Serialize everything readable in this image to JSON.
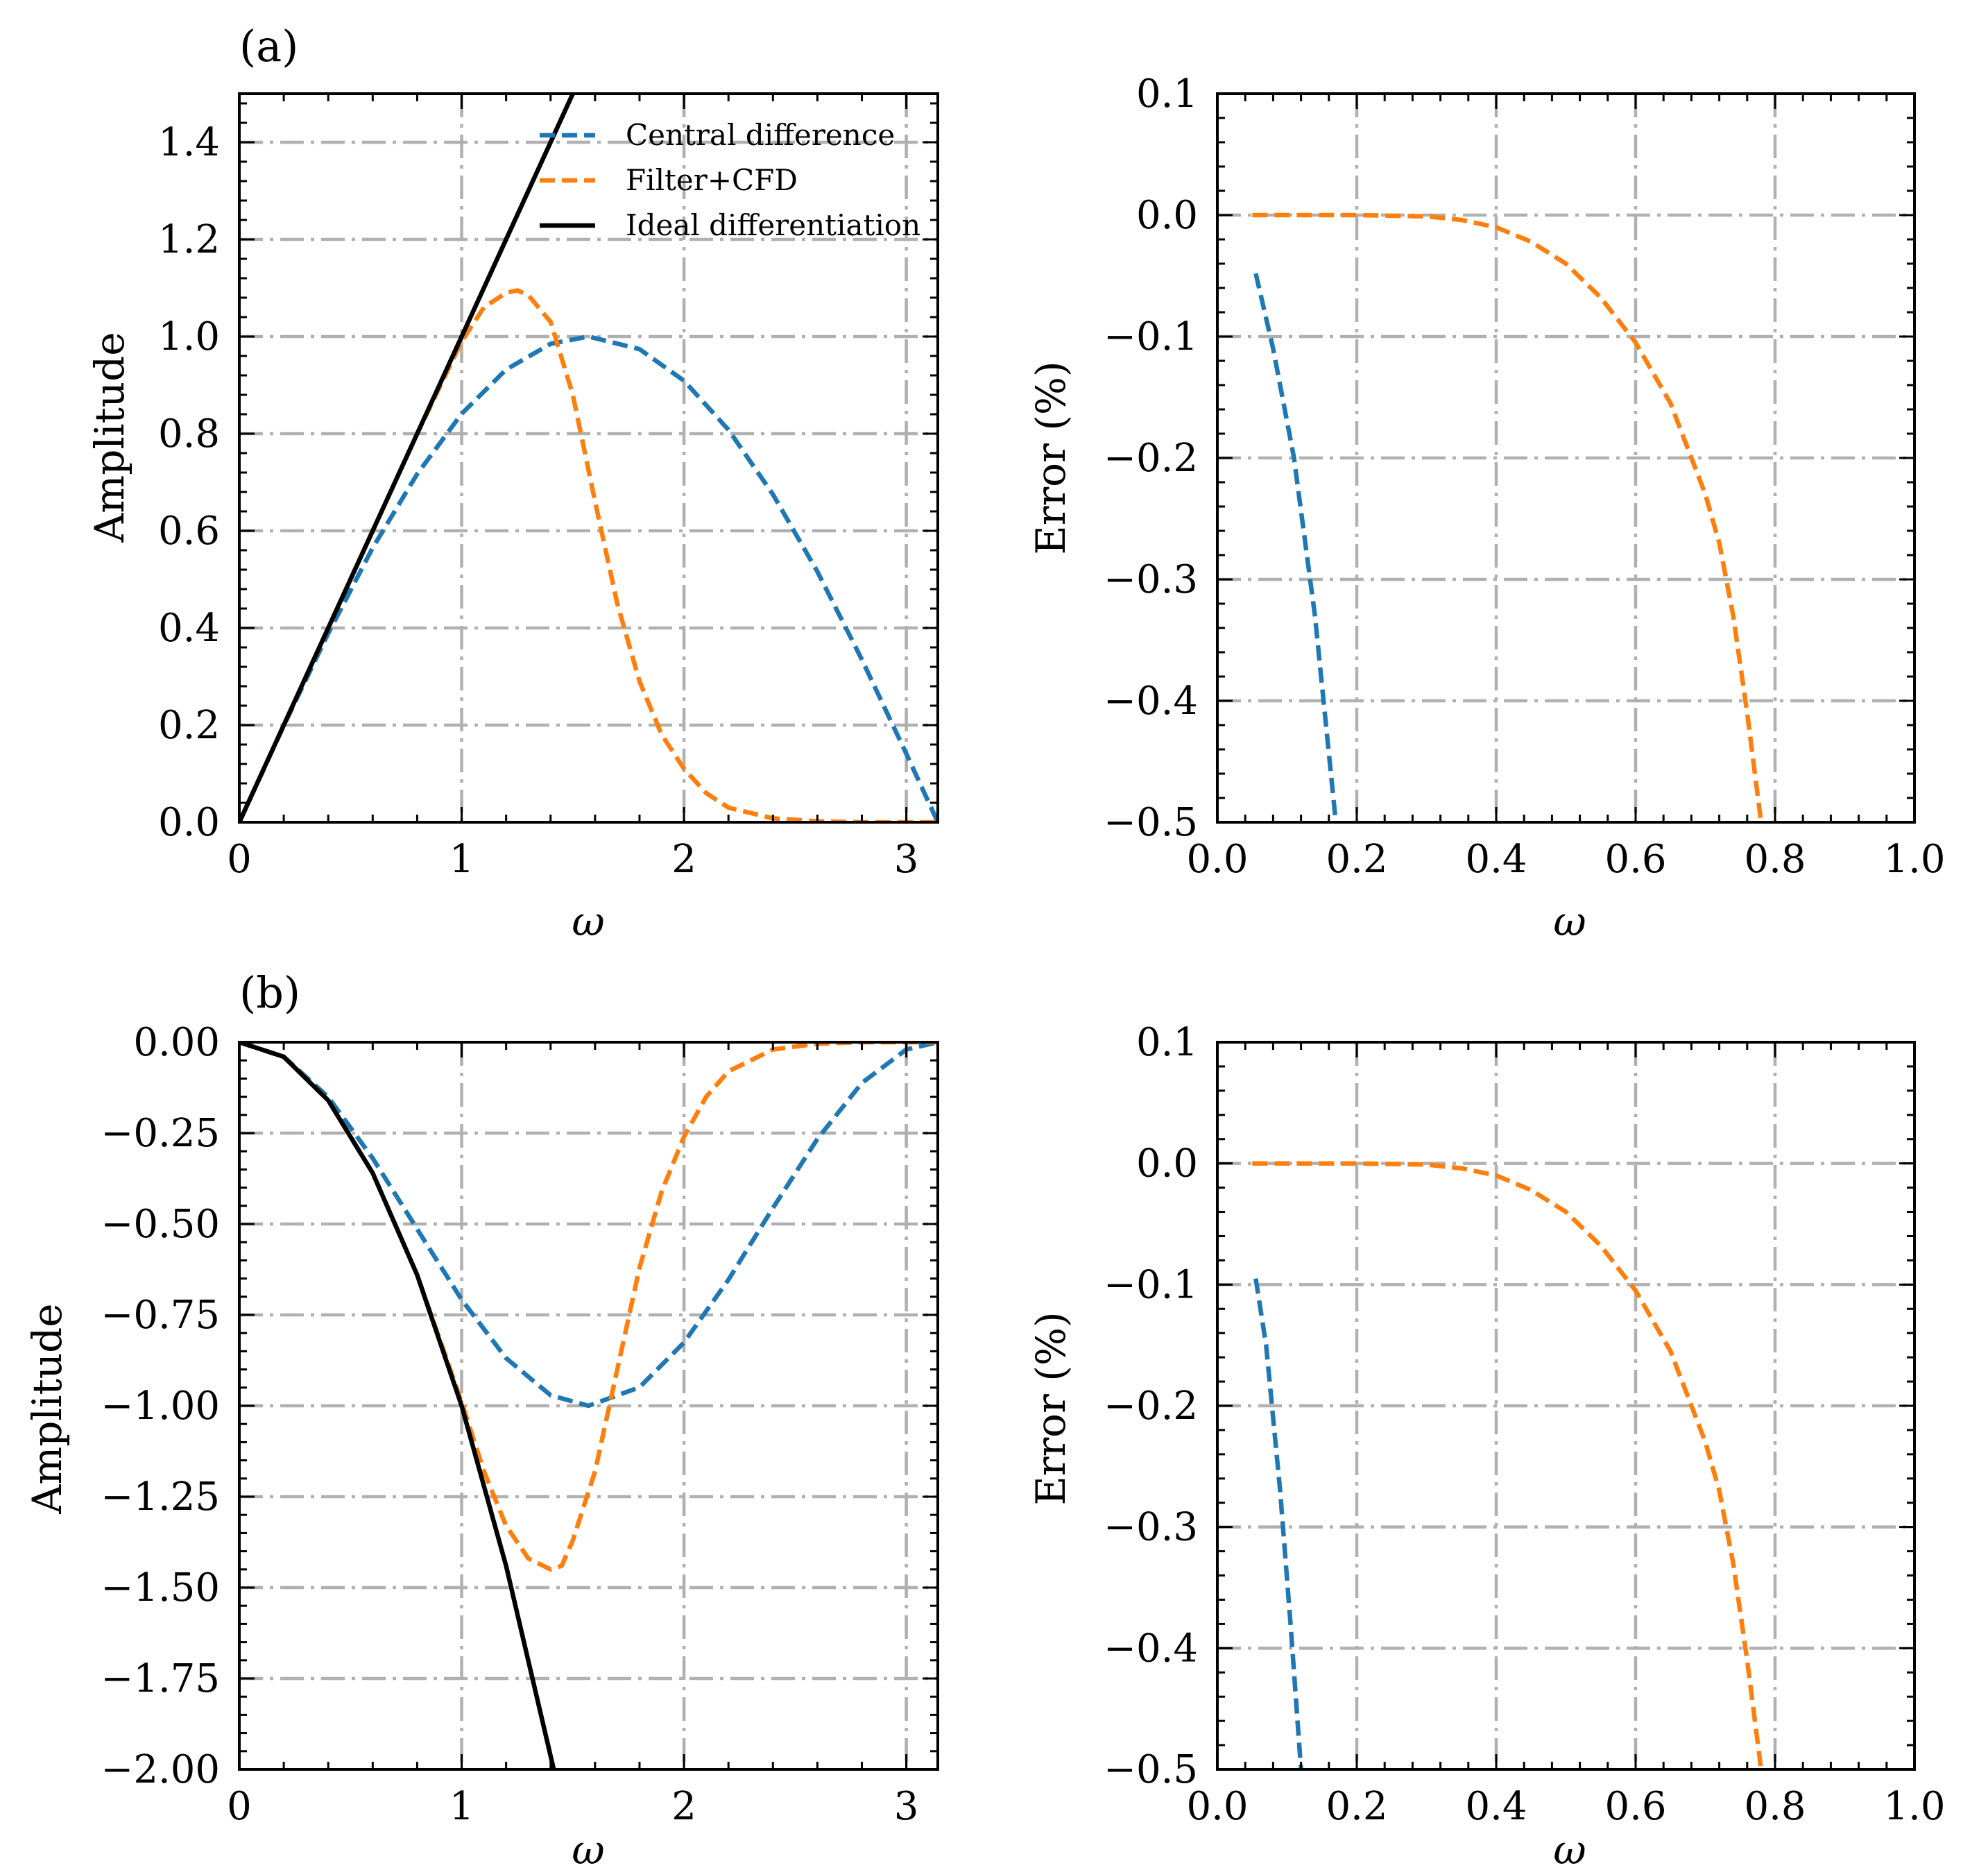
{
  "colors": {
    "central": "#1f77b4",
    "filter": "#ff7f0e",
    "ideal": "#000000",
    "grid": "#b0b0b0"
  },
  "legend": {
    "central": "Central difference",
    "filter": "Filter+CFD",
    "ideal": "Ideal differentiation"
  },
  "chart_data": [
    {
      "id": "a-left",
      "type": "line",
      "panel_label": "(a)",
      "xlabel": "ω",
      "ylabel": "Amplitude",
      "xlim": [
        0,
        3.1416
      ],
      "ylim": [
        0,
        1.5
      ],
      "xticks": [
        0,
        1,
        2,
        3
      ],
      "xtick_labels": [
        "0",
        "1",
        "2",
        "3"
      ],
      "yticks": [
        0,
        0.2,
        0.4,
        0.6,
        0.8,
        1.0,
        1.2,
        1.4
      ],
      "ytick_labels": [
        "0.0",
        "0.2",
        "0.4",
        "0.6",
        "0.8",
        "1.0",
        "1.2",
        "1.4"
      ],
      "grid": true,
      "legend_position": "top-right",
      "series": [
        {
          "name": "Central difference",
          "key": "central",
          "dash": "dashed",
          "x": [
            0,
            0.2,
            0.4,
            0.6,
            0.8,
            1.0,
            1.2,
            1.4,
            1.5708,
            1.8,
            2.0,
            2.2,
            2.4,
            2.6,
            2.8,
            3.0,
            3.1416
          ],
          "y": [
            0,
            0.199,
            0.389,
            0.565,
            0.717,
            0.841,
            0.932,
            0.985,
            1.0,
            0.974,
            0.909,
            0.808,
            0.675,
            0.516,
            0.335,
            0.141,
            0
          ]
        },
        {
          "name": "Filter+CFD",
          "key": "filter",
          "dash": "dashed",
          "x": [
            0,
            0.2,
            0.4,
            0.6,
            0.8,
            1.0,
            1.1,
            1.2,
            1.25,
            1.3,
            1.4,
            1.5,
            1.6,
            1.7,
            1.8,
            1.9,
            2.0,
            2.1,
            2.2,
            2.4,
            2.6,
            2.8,
            3.0,
            3.1416
          ],
          "y": [
            0,
            0.2,
            0.4,
            0.6,
            0.8,
            0.99,
            1.06,
            1.09,
            1.095,
            1.085,
            1.03,
            0.88,
            0.66,
            0.45,
            0.29,
            0.18,
            0.11,
            0.06,
            0.03,
            0.008,
            0.002,
            0.0,
            0.0,
            0.0
          ]
        },
        {
          "name": "Ideal differentiation",
          "key": "ideal",
          "dash": "solid",
          "x": [
            0,
            1.5
          ],
          "y": [
            0,
            1.5
          ]
        }
      ]
    },
    {
      "id": "a-right",
      "type": "line",
      "xlabel": "ω",
      "ylabel": "Error (%)",
      "xlim": [
        0,
        1.0
      ],
      "ylim": [
        -0.5,
        0.1
      ],
      "xticks": [
        0,
        0.2,
        0.4,
        0.6,
        0.8,
        1.0
      ],
      "xtick_labels": [
        "0.0",
        "0.2",
        "0.4",
        "0.6",
        "0.8",
        "1.0"
      ],
      "yticks": [
        0.1,
        0.0,
        -0.1,
        -0.2,
        -0.3,
        -0.4,
        -0.5
      ],
      "ytick_labels": [
        "0.1",
        "0.0",
        "−0.1",
        "−0.2",
        "−0.3",
        "−0.4",
        "−0.5"
      ],
      "grid": true,
      "series": [
        {
          "key": "central",
          "dash": "dashed",
          "x": [
            0.055,
            0.08,
            0.11,
            0.14,
            0.17
          ],
          "y": [
            -0.048,
            -0.11,
            -0.2,
            -0.33,
            -0.5
          ]
        },
        {
          "key": "filter",
          "dash": "dashed",
          "x": [
            0.05,
            0.1,
            0.2,
            0.3,
            0.35,
            0.4,
            0.45,
            0.5,
            0.55,
            0.6,
            0.65,
            0.7,
            0.72,
            0.74,
            0.76,
            0.78
          ],
          "y": [
            0,
            0,
            0,
            -0.001,
            -0.004,
            -0.01,
            -0.022,
            -0.04,
            -0.068,
            -0.105,
            -0.155,
            -0.23,
            -0.27,
            -0.33,
            -0.41,
            -0.5
          ]
        }
      ]
    },
    {
      "id": "b-left",
      "type": "line",
      "panel_label": "(b)",
      "xlabel": "ω",
      "ylabel": "Amplitude",
      "xlim": [
        0,
        3.1416
      ],
      "ylim": [
        -2.0,
        0.0
      ],
      "xticks": [
        0,
        1,
        2,
        3
      ],
      "xtick_labels": [
        "0",
        "1",
        "2",
        "3"
      ],
      "yticks": [
        0,
        -0.25,
        -0.5,
        -0.75,
        -1.0,
        -1.25,
        -1.5,
        -1.75,
        -2.0
      ],
      "ytick_labels": [
        "0.00",
        "−0.25",
        "−0.50",
        "−0.75",
        "−1.00",
        "−1.25",
        "−1.50",
        "−1.75",
        "−2.00"
      ],
      "grid": true,
      "series": [
        {
          "key": "central",
          "dash": "dashed",
          "x": [
            0,
            0.2,
            0.4,
            0.6,
            0.8,
            1.0,
            1.2,
            1.4,
            1.5708,
            1.8,
            2.0,
            2.2,
            2.4,
            2.6,
            2.8,
            3.0,
            3.1416
          ],
          "y": [
            0,
            -0.04,
            -0.151,
            -0.319,
            -0.514,
            -0.708,
            -0.869,
            -0.971,
            -1.0,
            -0.949,
            -0.826,
            -0.653,
            -0.456,
            -0.266,
            -0.112,
            -0.02,
            0
          ]
        },
        {
          "key": "filter",
          "dash": "dashed",
          "x": [
            0,
            0.2,
            0.4,
            0.6,
            0.8,
            1.0,
            1.1,
            1.2,
            1.3,
            1.4,
            1.45,
            1.5,
            1.6,
            1.7,
            1.8,
            1.9,
            2.0,
            2.1,
            2.2,
            2.4,
            2.6,
            2.8,
            3.0,
            3.1416
          ],
          "y": [
            0,
            -0.04,
            -0.16,
            -0.36,
            -0.64,
            -0.99,
            -1.18,
            -1.33,
            -1.42,
            -1.45,
            -1.44,
            -1.37,
            -1.18,
            -0.9,
            -0.62,
            -0.41,
            -0.26,
            -0.15,
            -0.08,
            -0.02,
            -0.004,
            0,
            0,
            0
          ]
        },
        {
          "key": "ideal",
          "dash": "solid",
          "x": [
            0,
            0.2,
            0.4,
            0.6,
            0.8,
            1.0,
            1.2,
            1.4142
          ],
          "y": [
            0,
            -0.04,
            -0.16,
            -0.36,
            -0.64,
            -1.0,
            -1.44,
            -2.0
          ]
        }
      ]
    },
    {
      "id": "b-right",
      "type": "line",
      "xlabel": "ω",
      "ylabel": "Error (%)",
      "xlim": [
        0,
        1.0
      ],
      "ylim": [
        -0.5,
        0.1
      ],
      "xticks": [
        0,
        0.2,
        0.4,
        0.6,
        0.8,
        1.0
      ],
      "xtick_labels": [
        "0.0",
        "0.2",
        "0.4",
        "0.6",
        "0.8",
        "1.0"
      ],
      "yticks": [
        0.1,
        0.0,
        -0.1,
        -0.2,
        -0.3,
        -0.4,
        -0.5
      ],
      "ytick_labels": [
        "0.1",
        "0.0",
        "−0.1",
        "−0.2",
        "−0.3",
        "−0.4",
        "−0.5"
      ],
      "grid": true,
      "series": [
        {
          "key": "central",
          "dash": "dashed",
          "x": [
            0.055,
            0.07,
            0.09,
            0.105,
            0.12
          ],
          "y": [
            -0.095,
            -0.15,
            -0.27,
            -0.38,
            -0.5
          ]
        },
        {
          "key": "filter",
          "dash": "dashed",
          "x": [
            0.05,
            0.1,
            0.2,
            0.3,
            0.35,
            0.4,
            0.45,
            0.5,
            0.55,
            0.6,
            0.65,
            0.7,
            0.72,
            0.74,
            0.76,
            0.78
          ],
          "y": [
            0,
            0,
            0,
            -0.001,
            -0.004,
            -0.01,
            -0.022,
            -0.04,
            -0.068,
            -0.105,
            -0.155,
            -0.23,
            -0.27,
            -0.33,
            -0.41,
            -0.5
          ]
        }
      ]
    }
  ]
}
